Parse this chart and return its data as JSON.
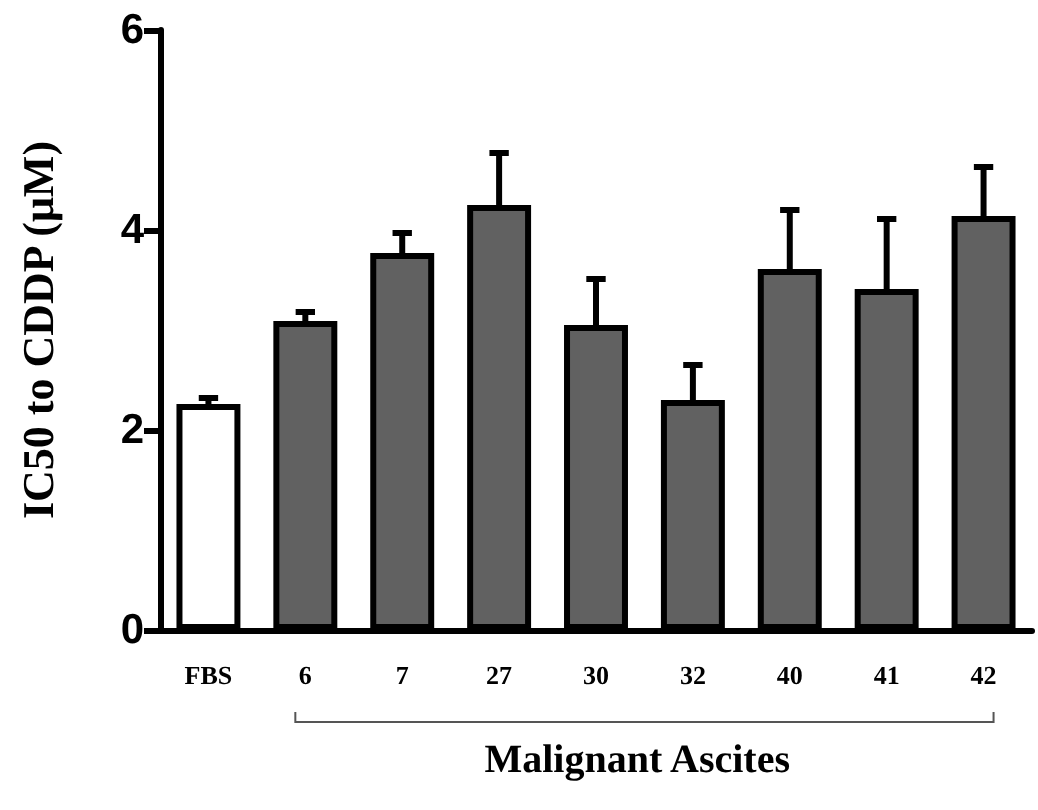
{
  "chart_data": {
    "type": "bar",
    "ylabel": "IC50 to CDDP (μM)",
    "categories": [
      "FBS",
      "6",
      "7",
      "27",
      "30",
      "32",
      "40",
      "41",
      "42"
    ],
    "values": [
      2.26,
      3.09,
      3.77,
      4.25,
      3.05,
      2.3,
      3.61,
      3.41,
      4.14
    ],
    "colors": [
      "#ffffff",
      "#616161",
      "#616161",
      "#616161",
      "#616161",
      "#616161",
      "#616161",
      "#616161",
      "#616161"
    ],
    "errors": [
      [
        2.26,
        2.32
      ],
      [
        3.09,
        3.18
      ],
      [
        3.77,
        3.97
      ],
      [
        4.25,
        4.77
      ],
      [
        3.05,
        3.51
      ],
      [
        2.3,
        2.65
      ],
      [
        3.61,
        4.2
      ],
      [
        3.41,
        4.11
      ],
      [
        4.14,
        4.63
      ]
    ],
    "ylim": [
      0,
      6
    ],
    "yticks": [
      0,
      2,
      4,
      6
    ],
    "grid": false,
    "annotations": [
      "Malignant Ascites"
    ]
  }
}
